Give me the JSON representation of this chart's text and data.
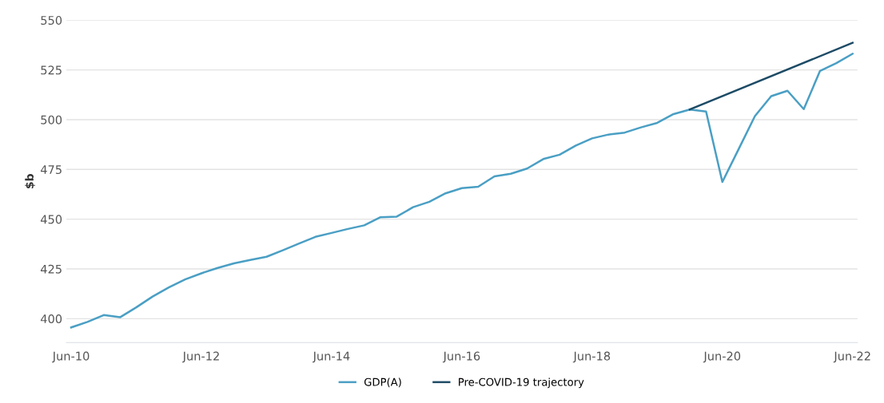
{
  "chart_data": {
    "type": "line",
    "ylabel": "$b",
    "categories": [
      "Jun-10",
      null,
      null,
      null,
      null,
      null,
      null,
      null,
      "Jun-12",
      null,
      null,
      null,
      null,
      null,
      null,
      null,
      "Jun-14",
      null,
      null,
      null,
      null,
      null,
      null,
      null,
      "Jun-16",
      null,
      null,
      null,
      null,
      null,
      null,
      null,
      "Jun-18",
      null,
      null,
      null,
      null,
      null,
      null,
      null,
      "Jun-20",
      null,
      null,
      null,
      null,
      null,
      null,
      null,
      "Jun-22"
    ],
    "series": [
      {
        "name": "GDP(A)",
        "color": "#4a9fc4",
        "values": [
          395.6,
          398.4,
          401.8,
          400.7,
          405.7,
          411.1,
          415.7,
          419.7,
          422.8,
          425.5,
          427.8,
          429.5,
          431.1,
          434.4,
          437.8,
          441.1,
          443.1,
          445.1,
          446.9,
          451.0,
          451.3,
          456.0,
          458.7,
          463.0,
          465.6,
          466.3,
          471.5,
          472.8,
          475.4,
          480.2,
          482.4,
          487.0,
          490.6,
          492.5,
          493.5,
          496.1,
          498.4,
          502.8,
          505.1,
          504.1,
          468.7,
          485.2,
          501.8,
          511.8,
          514.5,
          505.3,
          524.5,
          528.4,
          533.1
        ]
      },
      {
        "name": "Pre-COVID-19 trajectory",
        "color": "#1d4b66",
        "values": [
          null,
          null,
          null,
          null,
          null,
          null,
          null,
          null,
          null,
          null,
          null,
          null,
          null,
          null,
          null,
          null,
          null,
          null,
          null,
          null,
          null,
          null,
          null,
          null,
          null,
          null,
          null,
          null,
          null,
          null,
          null,
          null,
          null,
          null,
          null,
          null,
          null,
          null,
          505.1,
          null,
          null,
          null,
          null,
          null,
          null,
          null,
          null,
          null,
          538.6
        ]
      }
    ],
    "ylim": [
      388,
      550
    ],
    "yticks": [
      400,
      425,
      450,
      475,
      500,
      525,
      550
    ],
    "grid": "y",
    "legend": "bottom",
    "marker": "none",
    "line_style": "solid"
  }
}
